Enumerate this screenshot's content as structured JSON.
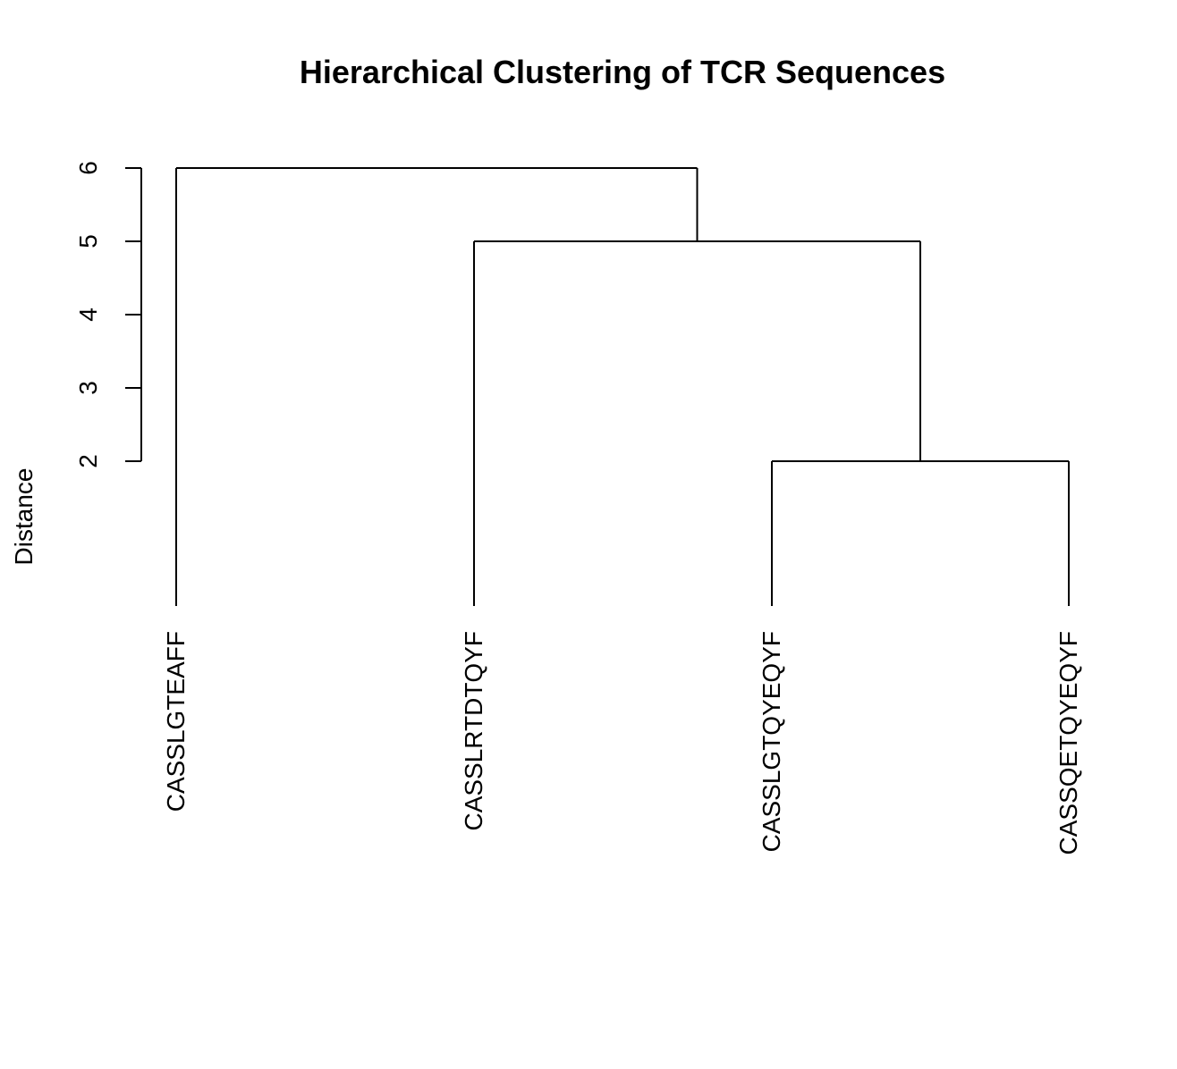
{
  "chart_data": {
    "type": "dendrogram",
    "title": "Hierarchical Clustering of TCR Sequences",
    "ylabel": "Distance",
    "xlabel": "",
    "ylim": [
      0,
      6
    ],
    "y_ticks": [
      "2",
      "3",
      "4",
      "5",
      "6"
    ],
    "leaves": [
      "CASSLGTEAFF",
      "CASSLRTDTQYF",
      "CASSLGTQYEQYF",
      "CASSQETQYEQYF"
    ],
    "merges": [
      {
        "left": "CASSLGTQYEQYF",
        "right": "CASSQETQYEQYF",
        "height": 2
      },
      {
        "left": "CASSLRTDTQYF",
        "right": "cluster1",
        "height": 5
      },
      {
        "left": "CASSLGTEAFF",
        "right": "cluster2",
        "height": 6
      }
    ],
    "colors": {
      "line": "#000000",
      "background": "#ffffff"
    }
  }
}
